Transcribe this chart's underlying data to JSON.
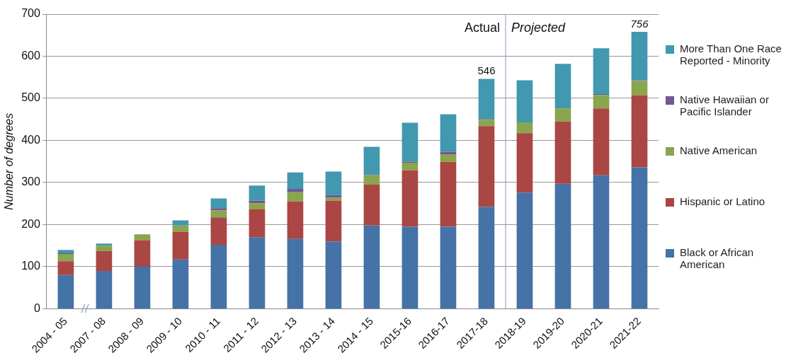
{
  "chart_data": {
    "type": "bar",
    "stacked": true,
    "ylabel": "Number of degrees",
    "categories": [
      "2004 - 05",
      "2007 - 08",
      "2008 - 09",
      "2009 - 10",
      "2010 - 11",
      "2011 - 12",
      "2012 - 13",
      "2013 - 14",
      "2014 - 15",
      "2015-16",
      "2016-17",
      "2017-18",
      "2018-19",
      "2019-20",
      "2020-21",
      "2021-22"
    ],
    "series": [
      {
        "name": "Black or African American",
        "color": "#4572a7",
        "values": [
          80,
          90,
          100,
          117,
          152,
          170,
          166,
          160,
          198,
          195,
          195,
          242,
          276,
          297,
          317,
          336
        ]
      },
      {
        "name": "Hispanic or Latino",
        "color": "#aa4643",
        "values": [
          33,
          47,
          63,
          66,
          65,
          66,
          89,
          97,
          97,
          134,
          154,
          192,
          141,
          148,
          159,
          171
        ]
      },
      {
        "name": "Native American",
        "color": "#89a54e",
        "values": [
          17,
          13,
          14,
          15,
          17,
          15,
          22,
          7,
          22,
          18,
          18,
          15,
          26,
          31,
          32,
          34
        ]
      },
      {
        "name": "Native Hawaiian or Pacific Islander",
        "color": "#71588f",
        "values": [
          2,
          0,
          0,
          0,
          5,
          6,
          8,
          6,
          1,
          2,
          6,
          2,
          0,
          0,
          2,
          2
        ]
      },
      {
        "name": "More Than One Race Reported - Minority",
        "color": "#4198af",
        "values": [
          8,
          5,
          0,
          12,
          23,
          36,
          39,
          56,
          67,
          93,
          89,
          95,
          100,
          106,
          109,
          115
        ]
      }
    ],
    "totals": [
      null,
      null,
      null,
      null,
      null,
      null,
      null,
      null,
      null,
      null,
      null,
      "546",
      null,
      null,
      null,
      null
    ],
    "ylim": [
      0,
      700
    ],
    "yticks": [
      0,
      100,
      200,
      300,
      400,
      500,
      600,
      700
    ],
    "grid": "y",
    "legend": "right",
    "ref_lines": [
      {
        "axis": "x",
        "value": "2018-19",
        "color": "#7f9fbf"
      }
    ],
    "annotations": [
      "Actual",
      "Projected",
      {
        "text": "756",
        "x": "2021-22",
        "y": 658
      }
    ]
  }
}
